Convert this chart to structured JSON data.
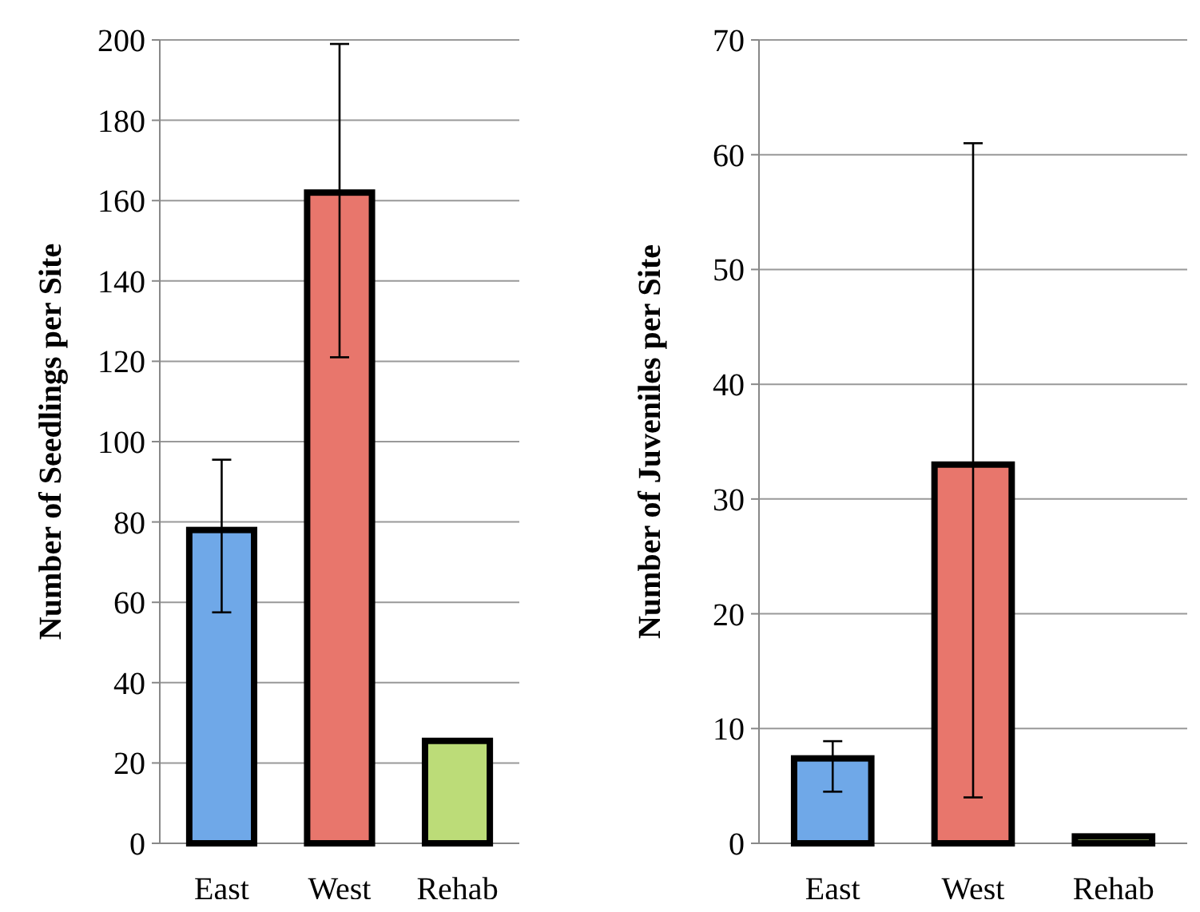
{
  "chart_data": [
    {
      "type": "bar",
      "ylabel": "Number of Seedlings per Site",
      "categories": [
        "East",
        "West",
        "Rehab"
      ],
      "values": [
        78,
        162,
        25.5
      ],
      "colors": [
        "#6fa8e8",
        "#e8766c",
        "#bcdc78"
      ],
      "errors": [
        [
          57.5,
          95.5
        ],
        [
          121,
          199
        ],
        null
      ],
      "ylim": [
        0,
        200
      ],
      "yticks": [
        0,
        20,
        40,
        60,
        80,
        100,
        120,
        140,
        160,
        180,
        200
      ],
      "grid": "y"
    },
    {
      "type": "bar",
      "ylabel": "Number of Juveniles per Site",
      "categories": [
        "East",
        "West",
        "Rehab"
      ],
      "values": [
        7.4,
        33,
        0.6
      ],
      "colors": [
        "#6fa8e8",
        "#e8766c",
        "#bcdc78"
      ],
      "errors": [
        [
          4.5,
          8.9
        ],
        [
          4,
          61
        ],
        null
      ],
      "ylim": [
        0,
        70
      ],
      "yticks": [
        0,
        10,
        20,
        30,
        40,
        50,
        60,
        70
      ],
      "grid": "y"
    }
  ]
}
